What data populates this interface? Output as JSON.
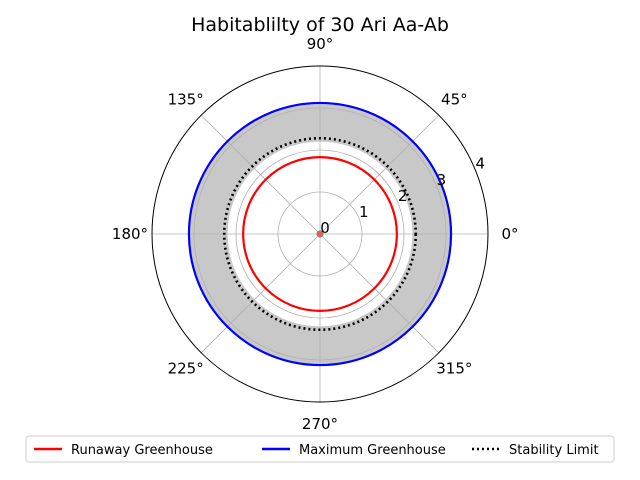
{
  "chart_data": {
    "type": "polar",
    "title": "Habitablilty of 30 Ari Aa-Ab",
    "angle_ticks": [
      {
        "deg": 0,
        "label": "0°"
      },
      {
        "deg": 45,
        "label": "45°"
      },
      {
        "deg": 90,
        "label": "90°"
      },
      {
        "deg": 135,
        "label": "135°"
      },
      {
        "deg": 180,
        "label": "180°"
      },
      {
        "deg": 225,
        "label": "225°"
      },
      {
        "deg": 270,
        "label": "270°"
      },
      {
        "deg": 315,
        "label": "315°"
      }
    ],
    "radial_ticks": [
      {
        "r": 0,
        "label": "0"
      },
      {
        "r": 1,
        "label": "1"
      },
      {
        "r": 2,
        "label": "2"
      },
      {
        "r": 3,
        "label": "3"
      },
      {
        "r": 4,
        "label": "4"
      }
    ],
    "rlim": [
      0,
      4
    ],
    "grid": true,
    "habitable_zone": {
      "inner_r": 2.2,
      "outer_r": 3.12,
      "color": "#c8c8c8"
    },
    "series": [
      {
        "name": "Runaway Greenhouse",
        "r": 1.83,
        "color": "#ff0000",
        "style": "solid"
      },
      {
        "name": "Maximum Greenhouse",
        "r": 3.12,
        "color": "#0000ff",
        "style": "solid"
      },
      {
        "name": "Stability Limit",
        "r": 2.28,
        "color": "#000000",
        "style": "dotted"
      }
    ],
    "center_marker": {
      "color": "#e06060"
    },
    "legend_position": "bottom"
  }
}
